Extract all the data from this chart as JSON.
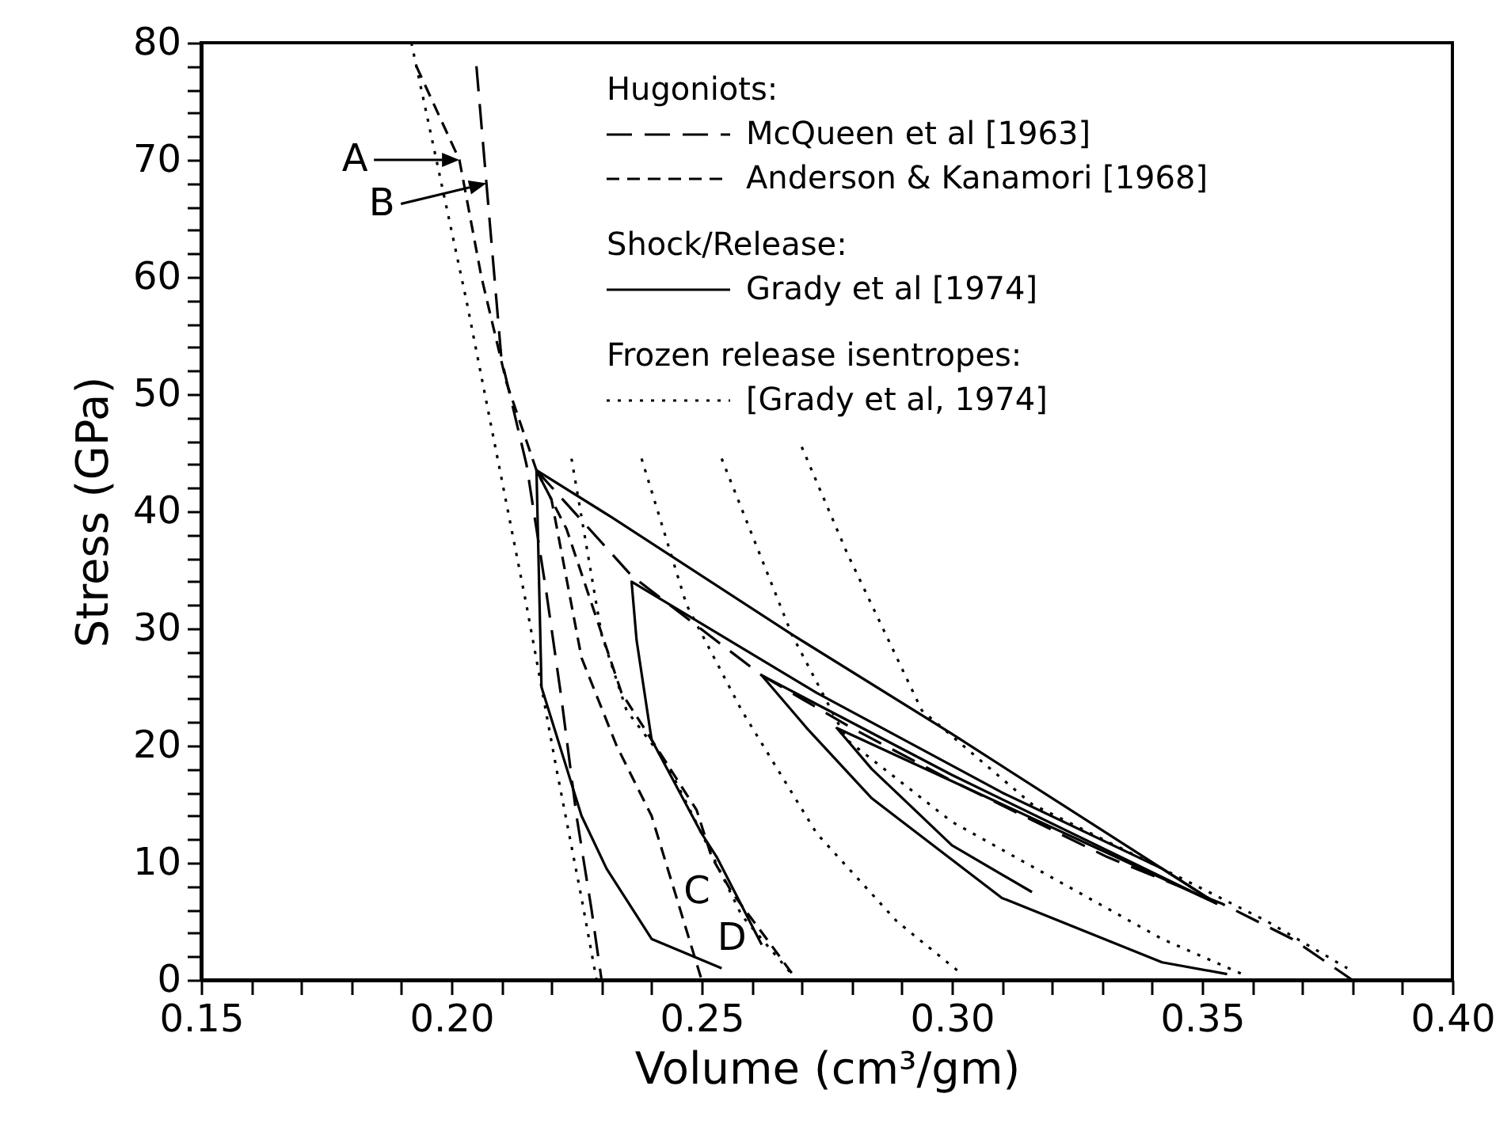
{
  "chart_data": {
    "type": "line",
    "xlabel": "Volume (cm³/gm)",
    "ylabel": "Stress (GPa)",
    "xlim": [
      0.15,
      0.4
    ],
    "ylim": [
      0,
      80
    ],
    "xticks": [
      {
        "value": 0.15,
        "label": "0.15"
      },
      {
        "value": 0.16,
        "label": null
      },
      {
        "value": 0.17,
        "label": null
      },
      {
        "value": 0.18,
        "label": null
      },
      {
        "value": 0.19,
        "label": null
      },
      {
        "value": 0.2,
        "label": "0.20"
      },
      {
        "value": 0.21,
        "label": null
      },
      {
        "value": 0.22,
        "label": null
      },
      {
        "value": 0.23,
        "label": null
      },
      {
        "value": 0.24,
        "label": null
      },
      {
        "value": 0.25,
        "label": "0.25"
      },
      {
        "value": 0.26,
        "label": null
      },
      {
        "value": 0.27,
        "label": null
      },
      {
        "value": 0.28,
        "label": null
      },
      {
        "value": 0.29,
        "label": null
      },
      {
        "value": 0.3,
        "label": "0.30"
      },
      {
        "value": 0.31,
        "label": null
      },
      {
        "value": 0.32,
        "label": null
      },
      {
        "value": 0.33,
        "label": null
      },
      {
        "value": 0.34,
        "label": null
      },
      {
        "value": 0.35,
        "label": "0.35"
      },
      {
        "value": 0.36,
        "label": null
      },
      {
        "value": 0.37,
        "label": null
      },
      {
        "value": 0.38,
        "label": null
      },
      {
        "value": 0.39,
        "label": null
      },
      {
        "value": 0.4,
        "label": "0.40"
      }
    ],
    "yticks": [
      0,
      {
        "value": 2,
        "label": null
      },
      {
        "value": 4,
        "label": null
      },
      {
        "value": 6,
        "label": null
      },
      {
        "value": 8,
        "label": null
      },
      10,
      {
        "value": 12,
        "label": null
      },
      {
        "value": 14,
        "label": null
      },
      {
        "value": 16,
        "label": null
      },
      {
        "value": 18,
        "label": null
      },
      20,
      {
        "value": 22,
        "label": null
      },
      {
        "value": 24,
        "label": null
      },
      {
        "value": 26,
        "label": null
      },
      {
        "value": 28,
        "label": null
      },
      30,
      {
        "value": 32,
        "label": null
      },
      {
        "value": 34,
        "label": null
      },
      {
        "value": 36,
        "label": null
      },
      {
        "value": 38,
        "label": null
      },
      40,
      {
        "value": 42,
        "label": null
      },
      {
        "value": 44,
        "label": null
      },
      {
        "value": 46,
        "label": null
      },
      {
        "value": 48,
        "label": null
      },
      50,
      {
        "value": 52,
        "label": null
      },
      {
        "value": 54,
        "label": null
      },
      {
        "value": 56,
        "label": null
      },
      {
        "value": 58,
        "label": null
      },
      60,
      {
        "value": 62,
        "label": null
      },
      {
        "value": 64,
        "label": null
      },
      {
        "value": 66,
        "label": null
      },
      {
        "value": 68,
        "label": null
      },
      70,
      {
        "value": 72,
        "label": null
      },
      {
        "value": 74,
        "label": null
      },
      {
        "value": 76,
        "label": null
      },
      {
        "value": 78,
        "label": null
      },
      80
    ],
    "legend": "top right",
    "series": [
      {
        "name": "McQueen et al [1963]",
        "color": "#000000",
        "line_style": "dashed",
        "x": [
          0.205,
          0.207,
          0.21,
          0.215,
          0.219,
          0.222,
          0.225,
          0.228,
          0.23
        ],
        "values": [
          78,
          68,
          53,
          44,
          33,
          24,
          14,
          6,
          0
        ]
      },
      {
        "color": "#000000",
        "line_style": "dashed",
        "x": [
          0.217,
          0.236,
          0.262,
          0.28,
          0.3,
          0.331,
          0.354,
          0.368,
          0.38
        ],
        "values": [
          43.5,
          34.5,
          26,
          21.5,
          17,
          10.5,
          6.5,
          3.5,
          0
        ]
      },
      {
        "name": "Anderson & Kanamori [1968]",
        "color": "#000000",
        "line_style": "dashed",
        "x": [
          0.193,
          0.2016,
          0.206,
          0.211,
          0.217,
          0.22,
          0.226,
          0.233,
          0.24,
          0.245,
          0.25
        ],
        "values": [
          78,
          70,
          60,
          51,
          43.5,
          41,
          27.5,
          20,
          14,
          7,
          0
        ]
      },
      {
        "color": "#000000",
        "line_style": "dashed",
        "x": [
          0.217,
          0.223,
          0.234,
          0.249,
          0.252,
          0.256,
          0.263,
          0.269
        ],
        "values": [
          43.5,
          38.5,
          24.5,
          14.5,
          10.5,
          7.5,
          3.5,
          0
        ]
      },
      {
        "name": "Grady et al [1974]",
        "color": "#000000",
        "line_style": "solid",
        "x": [
          0.254,
          0.24,
          0.231,
          0.226,
          0.218,
          0.217,
          0.232,
          0.268,
          0.3,
          0.342,
          0.353
        ],
        "values": [
          1,
          3.5,
          9.5,
          14,
          25,
          43.5,
          39.5,
          29.5,
          21,
          9.5,
          6.5
        ]
      },
      {
        "color": "#000000",
        "line_style": "solid",
        "x": [
          0.262,
          0.253,
          0.25,
          0.24,
          0.237,
          0.236,
          0.273,
          0.31,
          0.342,
          0.353
        ],
        "values": [
          3,
          10.5,
          12.5,
          20.5,
          29,
          34,
          24.5,
          16,
          9.5,
          6.5
        ]
      },
      {
        "color": "#000000",
        "line_style": "solid",
        "x": [
          0.355,
          0.342,
          0.31,
          0.284,
          0.271,
          0.262,
          0.3,
          0.353
        ],
        "values": [
          0.5,
          1.5,
          7,
          15.5,
          21.5,
          26,
          17.5,
          6.5
        ]
      },
      {
        "color": "#000000",
        "line_style": "solid",
        "x": [
          0.316,
          0.3,
          0.284,
          0.277,
          0.31,
          0.353
        ],
        "values": [
          7.5,
          11.5,
          18,
          21.5,
          15,
          6.5
        ]
      },
      {
        "name": "[Grady et al, 1974]",
        "color": "#000000",
        "line_style": "dotted",
        "x": [
          0.192,
          0.196,
          0.203,
          0.209,
          0.215,
          0.221,
          0.226,
          0.229
        ],
        "values": [
          80,
          72,
          58,
          45,
          32,
          18,
          7,
          0
        ]
      },
      {
        "color": "#000000",
        "line_style": "dotted",
        "x": [
          0.224,
          0.23,
          0.235,
          0.243,
          0.25,
          0.258,
          0.268
        ],
        "values": [
          44.5,
          29.5,
          23,
          18.5,
          12.5,
          5.5,
          0.5
        ]
      },
      {
        "color": "#000000",
        "line_style": "dotted",
        "x": [
          0.238,
          0.247,
          0.258,
          0.273,
          0.289,
          0.302
        ],
        "values": [
          44.5,
          32,
          23,
          12.5,
          5,
          0.5
        ]
      },
      {
        "color": "#000000",
        "line_style": "dotted",
        "x": [
          0.254,
          0.268,
          0.279,
          0.3,
          0.321,
          0.342,
          0.358
        ],
        "values": [
          44.5,
          29.5,
          20.5,
          13.5,
          8.5,
          3.5,
          0.5
        ]
      },
      {
        "color": "#000000",
        "line_style": "dotted",
        "x": [
          0.27,
          0.279,
          0.294,
          0.316,
          0.342,
          0.363,
          0.379
        ],
        "values": [
          45.5,
          36.5,
          23,
          15,
          9.5,
          5,
          1
        ]
      }
    ],
    "annotations": [
      "Hugoniots:",
      "Shock/Release:",
      "Frozen release isentropes:",
      {
        "text": "A",
        "x": 0.2016,
        "y": 70
      },
      {
        "text": "B",
        "x": 0.207,
        "y": 68
      },
      {
        "text": "C",
        "x": 0.256,
        "y": 7.5
      },
      {
        "text": "D",
        "x": 0.263,
        "y": 3.5
      }
    ]
  }
}
